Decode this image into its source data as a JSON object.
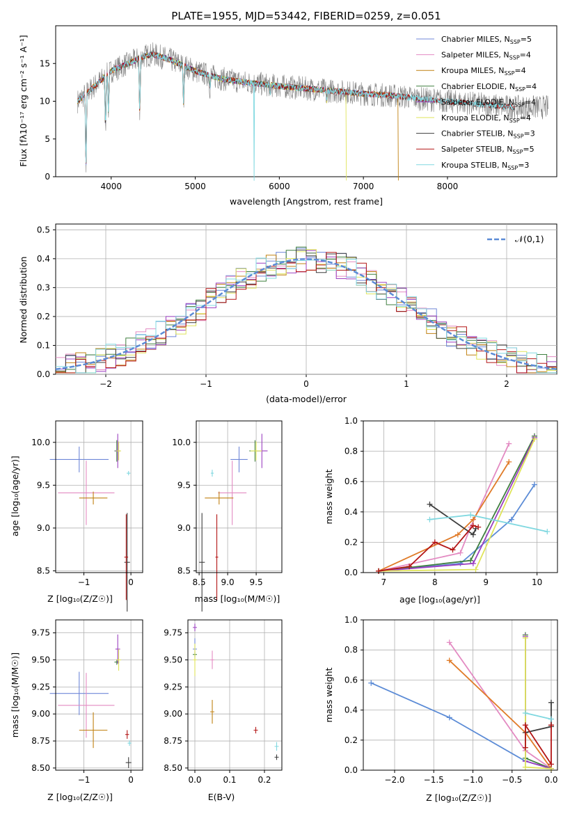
{
  "figure": {
    "title": "PLATE=1955, MJD=53442, FIBERID=0259, z=0.051"
  },
  "colors": {
    "Chabrier MILES": "#6f87d8",
    "Salpeter MILES": "#e38ac2",
    "Kroupa MILES": "#c08010",
    "Chabrier ELODIE": "#3f7f3f",
    "Salpeter ELODIE": "#9b3fc0",
    "Kroupa ELODIE": "#dfe45a",
    "Chabrier STELIB": "#3c3c3c",
    "Salpeter STELIB": "#b31515",
    "Kroupa STELIB": "#80d8e0",
    "data": "#808080",
    "gaussian": "#5b8bd6",
    "mw_blue": "#5b8bd6",
    "mw_orange": "#e07b28"
  },
  "spectrum": {
    "ylabel": "Flux [fλ10⁻¹⁷ erg cm⁻² s⁻¹ A⁻¹]",
    "xlabel": "wavelength [Angstrom, rest frame]",
    "legend": [
      {
        "name": "Chabrier MILES",
        "nssp": "5"
      },
      {
        "name": "Salpeter MILES",
        "nssp": "4"
      },
      {
        "name": "Kroupa MILES",
        "nssp": "4"
      },
      {
        "name": "Chabrier ELODIE",
        "nssp": "4"
      },
      {
        "name": "Salpeter ELODIE",
        "nssp": "4"
      },
      {
        "name": "Kroupa ELODIE",
        "nssp": "4"
      },
      {
        "name": "Chabrier STELIB",
        "nssp": "3"
      },
      {
        "name": "Salpeter STELIB",
        "nssp": "5"
      },
      {
        "name": "Kroupa STELIB",
        "nssp": "3"
      }
    ]
  },
  "residuals": {
    "ylabel": "Normed distribution",
    "xlabel": "(data-model)/error",
    "legend_label": "𝒩(0,1)"
  },
  "panels": {
    "p3_xlabel": "Z [log₁₀(Z/Z☉)]",
    "p3_ylabel": "age  [log₁₀(age/yr)]",
    "p4_xlabel": "mass [log₁₀(M/M☉)]",
    "p5_xlabel": "age  [log₁₀(age/yr)]",
    "p5_ylabel": "mass weight",
    "p6_xlabel": "Z [log₁₀(Z/Z☉)]",
    "p6_ylabel": "mass [log₁₀(M/M☉)]",
    "p7_xlabel": "E(B-V)",
    "p8_xlabel": "Z [log₁₀(Z/Z☉)]",
    "p8_ylabel": "mass weight"
  },
  "chart_data": [
    {
      "type": "line",
      "title": "PLATE=1955, MJD=53442, FIBERID=0259, z=0.051",
      "xlabel": "wavelength [Angstrom, rest frame]",
      "ylabel": "Flux [fλ10⁻¹⁷ erg cm⁻² s⁻¹ A⁻¹]",
      "xlim": [
        3340,
        9300
      ],
      "ylim": [
        0,
        20
      ],
      "xticks": [
        4000,
        5000,
        6000,
        7000,
        8000
      ],
      "yticks": [
        0,
        5,
        10,
        15
      ],
      "continuum_anchors": {
        "x": [
          3600,
          3700,
          3900,
          4000,
          4200,
          4400,
          4500,
          4700,
          5000,
          5300,
          5600,
          6000,
          6500,
          7000,
          7400,
          7700,
          8000,
          8500,
          8800
        ],
        "y": [
          10.0,
          11.0,
          13.0,
          14.0,
          15.0,
          16.0,
          16.2,
          15.5,
          14.0,
          13.0,
          12.5,
          12.0,
          11.5,
          11.0,
          10.7,
          10.3,
          10.0,
          9.5,
          9.2
        ]
      },
      "absorption_features": [
        {
          "x": 3700,
          "y": 0
        },
        {
          "x": 3933,
          "y": 5.5
        },
        {
          "x": 3968,
          "y": 8.0
        },
        {
          "x": 4340,
          "y": 7.5
        },
        {
          "x": 4861,
          "y": 9.5
        },
        {
          "x": 5175,
          "y": 11.5
        },
        {
          "x": 5890,
          "y": 11.0
        },
        {
          "x": 6563,
          "y": 10.0
        }
      ],
      "gaps": [
        {
          "x": 3900,
          "series": "Kroupa ELODIE"
        },
        {
          "x": 5700,
          "series": "Kroupa STELIB"
        },
        {
          "x": 6800,
          "series": "Kroupa ELODIE"
        },
        {
          "x": 7420,
          "series": "Kroupa MILES"
        }
      ],
      "series_ranges": {
        "data": [
          3600,
          9200
        ],
        "MILES": [
          3600,
          7420
        ],
        "ELODIE": [
          3900,
          6800
        ],
        "STELIB": [
          3600,
          8800
        ]
      }
    },
    {
      "type": "line",
      "xlabel": "(data-model)/error",
      "ylabel": "Normed distribution",
      "xlim": [
        -2.5,
        2.5
      ],
      "ylim": [
        0,
        0.52
      ],
      "xticks": [
        -2,
        -1,
        0,
        1,
        2
      ],
      "yticks": [
        0.0,
        0.1,
        0.2,
        0.3,
        0.4,
        0.5
      ],
      "bin_width": 0.1,
      "series": [
        "Chabrier MILES",
        "Salpeter MILES",
        "Kroupa MILES",
        "Chabrier ELODIE",
        "Salpeter ELODIE",
        "Kroupa ELODIE",
        "Chabrier STELIB",
        "Salpeter STELIB",
        "Kroupa STELIB"
      ],
      "reference": {
        "name": "𝒩(0,1)",
        "mean": 0,
        "sigma": 1
      }
    },
    {
      "type": "scatter",
      "xlabel": "Z [log₁₀(Z/Z☉)]",
      "ylabel": "age  [log₁₀(age/yr)]",
      "xlim": [
        -1.6,
        0.25
      ],
      "ylim": [
        8.48,
        10.25
      ],
      "xticks": [
        -1,
        0
      ],
      "yticks": [
        8.5,
        9.0,
        9.5,
        10.0
      ],
      "errorbars": [
        {
          "series": "Chabrier MILES",
          "x": -1.1,
          "y": 9.8,
          "xerr": 1.25,
          "yerr": 0.3
        },
        {
          "series": "Salpeter MILES",
          "x": -0.95,
          "y": 9.41,
          "xerr": 1.2,
          "yerr": 0.75
        },
        {
          "series": "Kroupa MILES",
          "x": -0.8,
          "y": 9.35,
          "xerr": 0.6,
          "yerr": 0.15
        },
        {
          "series": "Chabrier ELODIE",
          "x": -0.3,
          "y": 9.9,
          "xerr": 0.1,
          "yerr": 0.25
        },
        {
          "series": "Salpeter ELODIE",
          "x": -0.28,
          "y": 9.9,
          "xerr": 0.1,
          "yerr": 0.4
        },
        {
          "series": "Kroupa ELODIE",
          "x": -0.26,
          "y": 9.9,
          "xerr": 0.1,
          "yerr": 0.22
        },
        {
          "series": "Chabrier STELIB",
          "x": -0.08,
          "y": 8.6,
          "xerr": 0.12,
          "yerr": 1.15
        },
        {
          "series": "Salpeter STELIB",
          "x": -0.1,
          "y": 8.66,
          "xerr": 0.08,
          "yerr": 1.0
        },
        {
          "series": "Kroupa STELIB",
          "x": -0.05,
          "y": 9.64,
          "xerr": 0.08,
          "yerr": 0.05
        }
      ]
    },
    {
      "type": "scatter",
      "xlabel": "mass [log₁₀(M/M☉)]",
      "xlim": [
        8.45,
        9.95
      ],
      "ylim": [
        8.48,
        10.25
      ],
      "xticks": [
        8.5,
        9.0,
        9.5
      ],
      "yticks": [
        8.5,
        9.0,
        9.5,
        10.0
      ],
      "errorbars": [
        {
          "series": "Chabrier MILES",
          "x": 9.2,
          "y": 9.8,
          "xerr": 0.3,
          "yerr": 0.3
        },
        {
          "series": "Salpeter MILES",
          "x": 9.08,
          "y": 9.41,
          "xerr": 0.5,
          "yerr": 0.75
        },
        {
          "series": "Kroupa MILES",
          "x": 8.85,
          "y": 9.35,
          "xerr": 0.5,
          "yerr": 0.15
        },
        {
          "series": "Chabrier ELODIE",
          "x": 9.48,
          "y": 9.9,
          "xerr": 0.2,
          "yerr": 0.25
        },
        {
          "series": "Salpeter ELODIE",
          "x": 9.6,
          "y": 9.9,
          "xerr": 0.2,
          "yerr": 0.4
        },
        {
          "series": "Kroupa ELODIE",
          "x": 9.5,
          "y": 9.9,
          "xerr": 0.2,
          "yerr": 0.22
        },
        {
          "series": "Chabrier STELIB",
          "x": 8.55,
          "y": 8.6,
          "xerr": 0.1,
          "yerr": 1.15
        },
        {
          "series": "Salpeter STELIB",
          "x": 8.81,
          "y": 8.66,
          "xerr": 0.05,
          "yerr": 1.0
        },
        {
          "series": "Kroupa STELIB",
          "x": 8.73,
          "y": 9.64,
          "xerr": 0.05,
          "yerr": 0.08
        }
      ]
    },
    {
      "type": "line",
      "xlabel": "age  [log₁₀(age/yr)]",
      "ylabel": "mass weight",
      "xlim": [
        6.6,
        10.4
      ],
      "ylim": [
        0,
        1.0
      ],
      "xticks": [
        7,
        8,
        9,
        10
      ],
      "yticks": [
        0.0,
        0.2,
        0.4,
        0.6,
        0.8,
        1.0
      ],
      "series": [
        {
          "name": "Chabrier MILES",
          "x": [
            6.9,
            8.5,
            9.5,
            9.95
          ],
          "y": [
            0.01,
            0.06,
            0.35,
            0.58
          ]
        },
        {
          "name": "Salpeter MILES",
          "x": [
            6.9,
            8.5,
            8.7,
            9.45
          ],
          "y": [
            0.01,
            0.13,
            0.3,
            0.85
          ]
        },
        {
          "name": "Kroupa MILES",
          "x": [
            6.9,
            8.45,
            8.75,
            9.45
          ],
          "y": [
            0.01,
            0.25,
            0.35,
            0.73
          ]
        },
        {
          "name": "Chabrier ELODIE",
          "x": [
            6.9,
            8.7,
            9.95
          ],
          "y": [
            0.01,
            0.08,
            0.9
          ]
        },
        {
          "name": "Salpeter ELODIE",
          "x": [
            6.9,
            8.75,
            9.95
          ],
          "y": [
            0.01,
            0.06,
            0.89
          ]
        },
        {
          "name": "Kroupa ELODIE",
          "x": [
            6.9,
            8.8,
            9.95
          ],
          "y": [
            0.01,
            0.02,
            0.88
          ]
        },
        {
          "name": "Chabrier STELIB",
          "x": [
            7.9,
            8.75,
            8.8
          ],
          "y": [
            0.45,
            0.25,
            0.29
          ]
        },
        {
          "name": "Salpeter STELIB",
          "x": [
            6.9,
            7.5,
            8.0,
            8.35,
            8.75,
            8.85
          ],
          "y": [
            0.01,
            0.04,
            0.2,
            0.15,
            0.31,
            0.3
          ]
        },
        {
          "name": "Kroupa STELIB",
          "x": [
            7.9,
            8.7,
            10.2
          ],
          "y": [
            0.35,
            0.38,
            0.27
          ]
        }
      ]
    },
    {
      "type": "scatter",
      "xlabel": "Z [log₁₀(Z/Z☉)]",
      "ylabel": "mass [log₁₀(M/M☉)]",
      "xlim": [
        -1.6,
        0.25
      ],
      "ylim": [
        8.48,
        9.87
      ],
      "xticks": [
        -1,
        0
      ],
      "yticks": [
        8.5,
        8.75,
        9.0,
        9.25,
        9.5,
        9.75
      ],
      "errorbars": [
        {
          "series": "Chabrier MILES",
          "x": -1.1,
          "y": 9.19,
          "xerr": 1.25,
          "yerr": 0.4
        },
        {
          "series": "Salpeter MILES",
          "x": -0.95,
          "y": 9.08,
          "xerr": 1.2,
          "yerr": 0.6
        },
        {
          "series": "Kroupa MILES",
          "x": -0.8,
          "y": 8.85,
          "xerr": 0.6,
          "yerr": 0.33
        },
        {
          "series": "Chabrier ELODIE",
          "x": -0.3,
          "y": 9.48,
          "xerr": 0.1,
          "yerr": 0.05
        },
        {
          "series": "Salpeter ELODIE",
          "x": -0.28,
          "y": 9.6,
          "xerr": 0.1,
          "yerr": 0.27
        },
        {
          "series": "Kroupa ELODIE",
          "x": -0.26,
          "y": 9.5,
          "xerr": 0.1,
          "yerr": 0.2
        },
        {
          "series": "Chabrier STELIB",
          "x": -0.05,
          "y": 8.55,
          "xerr": 0.12,
          "yerr": 0.1
        },
        {
          "series": "Salpeter STELIB",
          "x": -0.08,
          "y": 8.81,
          "xerr": 0.08,
          "yerr": 0.08
        },
        {
          "series": "Kroupa STELIB",
          "x": -0.03,
          "y": 8.73,
          "xerr": 0.08,
          "yerr": 0.05
        }
      ]
    },
    {
      "type": "scatter",
      "xlabel": "E(B-V)",
      "xlim": [
        -0.02,
        0.25
      ],
      "ylim": [
        8.48,
        9.87
      ],
      "xticks": [
        0.0,
        0.1,
        0.2
      ],
      "yticks": [
        8.5,
        8.75,
        9.0,
        9.25,
        9.5,
        9.75
      ],
      "errorbars": [
        {
          "series": "Chabrier MILES",
          "x": 0.0,
          "y": 9.6,
          "yerr": 0.2
        },
        {
          "series": "Salpeter MILES",
          "x": 0.05,
          "y": 9.5,
          "yerr": 0.17
        },
        {
          "series": "Kroupa MILES",
          "x": 0.05,
          "y": 9.02,
          "yerr": 0.22
        },
        {
          "series": "Chabrier ELODIE",
          "x": 0.0,
          "y": 9.55,
          "yerr": 0.05
        },
        {
          "series": "Salpeter ELODIE",
          "x": 0.0,
          "y": 9.8,
          "yerr": 0.07
        },
        {
          "series": "Kroupa ELODIE",
          "x": 0.0,
          "y": 9.5,
          "yerr": 0.3
        },
        {
          "series": "Chabrier STELIB",
          "x": 0.235,
          "y": 8.6,
          "yerr": 0.05
        },
        {
          "series": "Salpeter STELIB",
          "x": 0.175,
          "y": 8.85,
          "yerr": 0.06
        },
        {
          "series": "Kroupa STELIB",
          "x": 0.235,
          "y": 8.7,
          "yerr": 0.08
        }
      ]
    },
    {
      "type": "line",
      "xlabel": "Z [log₁₀(Z/Z☉)]",
      "ylabel": "mass weight",
      "xlim": [
        -2.4,
        0.08
      ],
      "ylim": [
        0,
        1.0
      ],
      "xticks": [
        -2.0,
        -1.5,
        -1.0,
        -0.5,
        0.0
      ],
      "yticks": [
        0.0,
        0.2,
        0.4,
        0.6,
        0.8,
        1.0
      ],
      "series": [
        {
          "name": "Chabrier MILES",
          "x": [
            -2.3,
            -1.3,
            -0.33,
            0.0
          ],
          "y": [
            0.58,
            0.35,
            0.06,
            0.01
          ]
        },
        {
          "name": "Salpeter MILES",
          "x": [
            -1.3,
            -0.33,
            0.0
          ],
          "y": [
            0.85,
            0.13,
            0.01
          ]
        },
        {
          "name": "Kroupa MILES",
          "x": [
            -1.3,
            -0.33,
            0.0
          ],
          "y": [
            0.73,
            0.25,
            0.01
          ]
        },
        {
          "name": "Chabrier ELODIE",
          "x": [
            -0.33,
            -0.33,
            0.0
          ],
          "y": [
            0.9,
            0.08,
            0.01
          ]
        },
        {
          "name": "Salpeter ELODIE",
          "x": [
            -0.33,
            -0.33,
            0.0
          ],
          "y": [
            0.89,
            0.06,
            0.01
          ]
        },
        {
          "name": "Kroupa ELODIE",
          "x": [
            -0.33,
            -0.33,
            0.0
          ],
          "y": [
            0.88,
            0.02,
            0.01
          ]
        },
        {
          "name": "Chabrier STELIB",
          "x": [
            -0.33,
            0.0,
            0.0
          ],
          "y": [
            0.25,
            0.29,
            0.45
          ]
        },
        {
          "name": "Salpeter STELIB",
          "x": [
            -0.33,
            -0.33,
            0.0,
            0.0
          ],
          "y": [
            0.15,
            0.3,
            0.04,
            0.3
          ]
        },
        {
          "name": "Kroupa STELIB",
          "x": [
            -0.33,
            0.0
          ],
          "y": [
            0.38,
            0.34
          ]
        }
      ]
    }
  ]
}
